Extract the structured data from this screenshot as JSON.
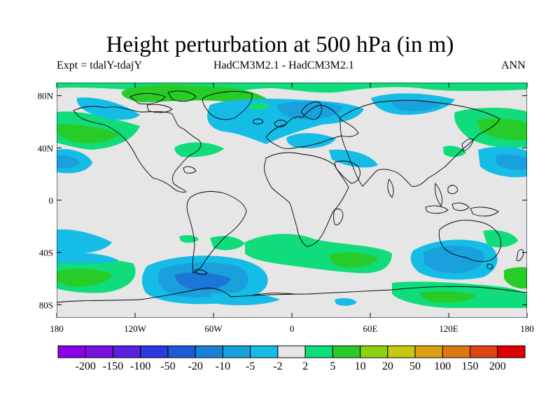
{
  "title": "Height perturbation at 500 hPa (in m)",
  "subtitle_left": "Expt = tdalY-tdajY",
  "subtitle_center": "HadCM3M2.1 - HadCM3M2.1",
  "subtitle_right": "ANN",
  "map": {
    "lon_range": [
      -180,
      180
    ],
    "lat_range": [
      -90,
      90
    ],
    "lat_ticks": [
      {
        "value": 80,
        "label": "80N"
      },
      {
        "value": 40,
        "label": "40N"
      },
      {
        "value": 0,
        "label": "0"
      },
      {
        "value": -40,
        "label": "40S"
      },
      {
        "value": -80,
        "label": "80S"
      }
    ],
    "lon_ticks": [
      {
        "value": -180,
        "label": "180"
      },
      {
        "value": -120,
        "label": "120W"
      },
      {
        "value": -60,
        "label": "60W"
      },
      {
        "value": 0,
        "label": "0"
      },
      {
        "value": 60,
        "label": "60E"
      },
      {
        "value": 120,
        "label": "120E"
      },
      {
        "value": 180,
        "label": "180"
      }
    ],
    "background_color": "#e6e6e6",
    "coastline_color": "#000000"
  },
  "colorbar": {
    "labels": [
      "-200",
      "-150",
      "-100",
      "-50",
      "-20",
      "-10",
      "-5",
      "-2",
      "2",
      "5",
      "10",
      "20",
      "50",
      "100",
      "150",
      "200"
    ],
    "colors": [
      "#8a00e6",
      "#7a10e0",
      "#5a20e0",
      "#2a3ae0",
      "#1e5ad6",
      "#1a82d6",
      "#1aa0dc",
      "#14bce6",
      "#e6e6e6",
      "#10dc7c",
      "#28cc28",
      "#8cd214",
      "#c8c814",
      "#dca014",
      "#dc7814",
      "#dc4614",
      "#dc0000"
    ]
  }
}
